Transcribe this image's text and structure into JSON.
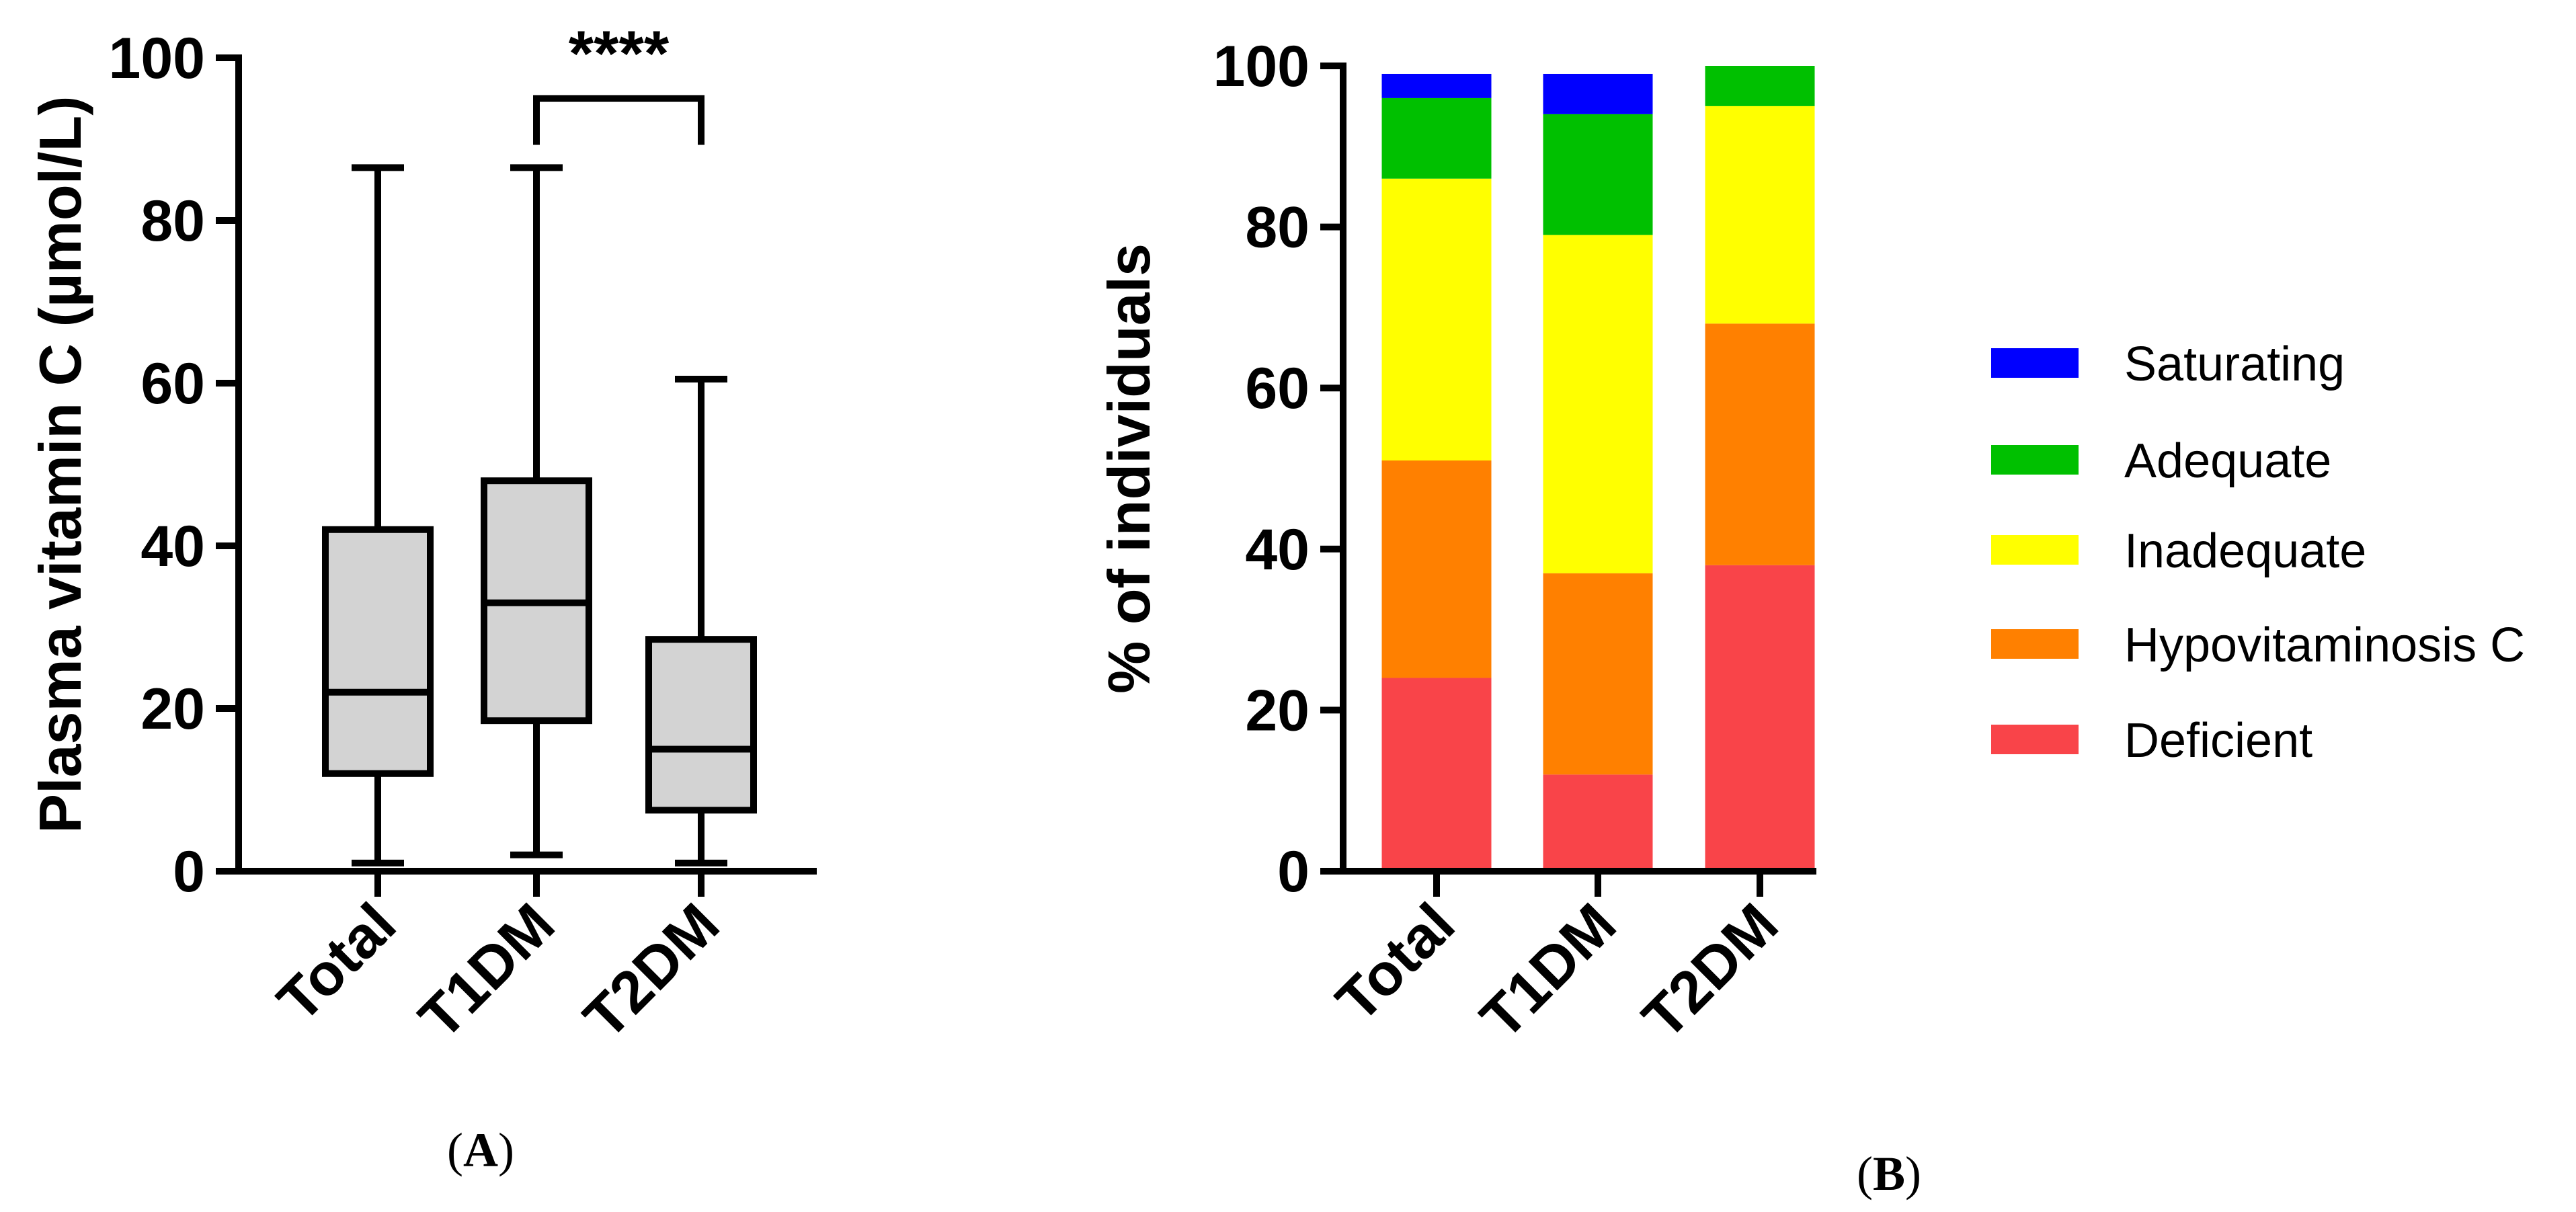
{
  "chart_data": [
    {
      "type": "box",
      "panel": "(A)",
      "panel_letter": "A",
      "ylabel": "Plasma vitamin C (µmol/L)",
      "ylim": [
        0,
        100
      ],
      "yticks": [
        0,
        20,
        40,
        60,
        80,
        100
      ],
      "categories": [
        "Total",
        "T1DM",
        "T2DM"
      ],
      "boxes": [
        {
          "name": "Total",
          "min": 1,
          "q1": 12,
          "median": 22,
          "q3": 42,
          "max": 86.5
        },
        {
          "name": "T1DM",
          "min": 2,
          "q1": 18.5,
          "median": 33,
          "q3": 48,
          "max": 86.5
        },
        {
          "name": "T2DM",
          "min": 1,
          "q1": 7.5,
          "median": 15,
          "q3": 28.5,
          "max": 60.5
        }
      ],
      "box_color": "#d3d3d3",
      "significance": {
        "from": "T1DM",
        "to": "T2DM",
        "label": "****",
        "y": 95
      }
    },
    {
      "type": "stacked_bar",
      "panel": "(B)",
      "panel_letter": "B",
      "ylabel": "% of individuals",
      "ylim": [
        0,
        100
      ],
      "yticks": [
        0,
        20,
        40,
        60,
        80,
        100
      ],
      "categories": [
        "Total",
        "T1DM",
        "T2DM"
      ],
      "series": [
        {
          "name": "Deficient",
          "color": "#f94449",
          "values": [
            24,
            12,
            38
          ]
        },
        {
          "name": "Hypovitaminosis C",
          "color": "#ff8000",
          "values": [
            27,
            25,
            30
          ]
        },
        {
          "name": "Inadequate",
          "color": "#ffff00",
          "values": [
            35,
            42,
            27
          ]
        },
        {
          "name": "Adequate",
          "color": "#00c000",
          "values": [
            10,
            15,
            5
          ]
        },
        {
          "name": "Saturating",
          "color": "#0000ff",
          "values": [
            3,
            5,
            0
          ]
        }
      ],
      "legend_order": [
        "Saturating",
        "Adequate",
        "Inadequate",
        "Hypovitaminosis C",
        "Deficient"
      ]
    }
  ]
}
